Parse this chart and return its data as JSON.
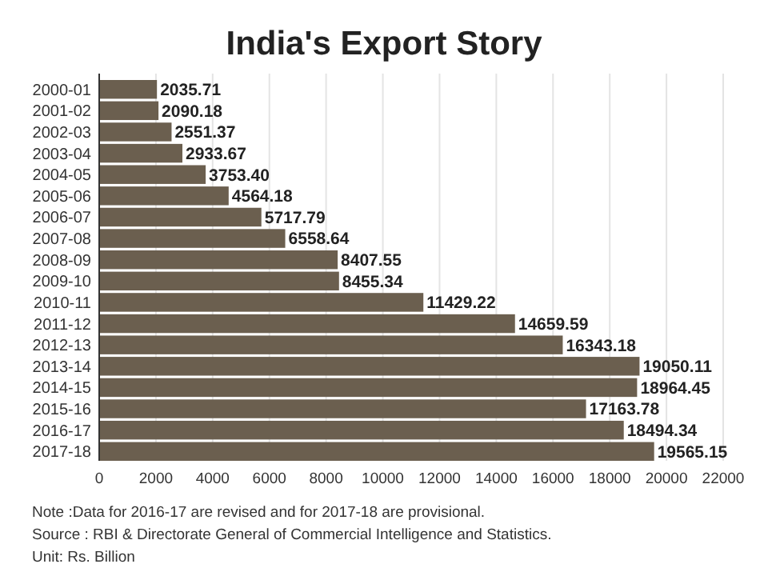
{
  "chart_data": {
    "type": "bar",
    "orientation": "horizontal",
    "title": "India's Export Story",
    "categories": [
      "2000-01",
      "2001-02",
      "2002-03",
      "2003-04",
      "2004-05",
      "2005-06",
      "2006-07",
      "2007-08",
      "2008-09",
      "2009-10",
      "2010-11",
      "2011-12",
      "2012-13",
      "2013-14",
      "2014-15",
      "2015-16",
      "2016-17",
      "2017-18"
    ],
    "values": [
      2035.71,
      2090.18,
      2551.37,
      2933.67,
      3753.4,
      4564.18,
      5717.79,
      6558.64,
      8407.55,
      8455.34,
      11429.22,
      14659.59,
      16343.18,
      19050.11,
      18964.45,
      17163.78,
      18494.34,
      19565.15
    ],
    "value_labels": [
      "2035.71",
      "2090.18",
      "2551.37",
      "2933.67",
      "3753.40",
      "4564.18",
      "5717.79",
      "6558.64",
      "8407.55",
      "8455.34",
      "11429.22",
      "14659.59",
      "16343.18",
      "19050.11",
      "18964.45",
      "17163.78",
      "18494.34",
      "19565.15"
    ],
    "color": "#6b5f4f",
    "xlim": [
      0,
      22000
    ],
    "xticks": [
      0,
      2000,
      4000,
      6000,
      8000,
      10000,
      12000,
      14000,
      16000,
      18000,
      20000,
      22000
    ],
    "grid": "x",
    "annotations": [
      "Note :Data for 2016-17 are revised and for 2017-18 are provisional.",
      "Source : RBI & Directorate General of Commercial Intelligence and Statistics.",
      "Unit: Rs. Billion"
    ]
  }
}
